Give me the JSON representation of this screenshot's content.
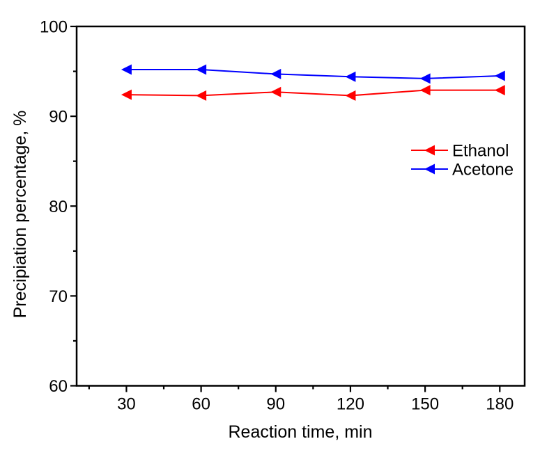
{
  "figure": {
    "background": "#ffffff",
    "axis_color": "#000000"
  },
  "chart_data": {
    "type": "line",
    "title": "",
    "xlabel": "Reaction time, min",
    "ylabel": "Precipiation percentage, %",
    "x": [
      30,
      60,
      90,
      120,
      150,
      180
    ],
    "series": [
      {
        "name": "Ethanol",
        "color": "#ff0000",
        "marker": "triangle-left",
        "values": [
          92.4,
          92.3,
          92.7,
          92.3,
          92.9,
          92.9
        ]
      },
      {
        "name": "Acetone",
        "color": "#0000ff",
        "marker": "triangle-left",
        "values": [
          95.2,
          95.2,
          94.7,
          94.4,
          94.2,
          94.5
        ]
      }
    ],
    "xlim": [
      10,
      190
    ],
    "ylim": [
      60,
      100
    ],
    "x_major_ticks": [
      30,
      60,
      90,
      120,
      150,
      180
    ],
    "x_minor_ticks": [
      15,
      45,
      75,
      105,
      135,
      165
    ],
    "y_major_ticks": [
      60,
      70,
      80,
      90,
      100
    ],
    "y_minor_ticks": [
      65,
      75,
      85,
      95
    ],
    "grid": false,
    "legend_position": "middle-right"
  }
}
